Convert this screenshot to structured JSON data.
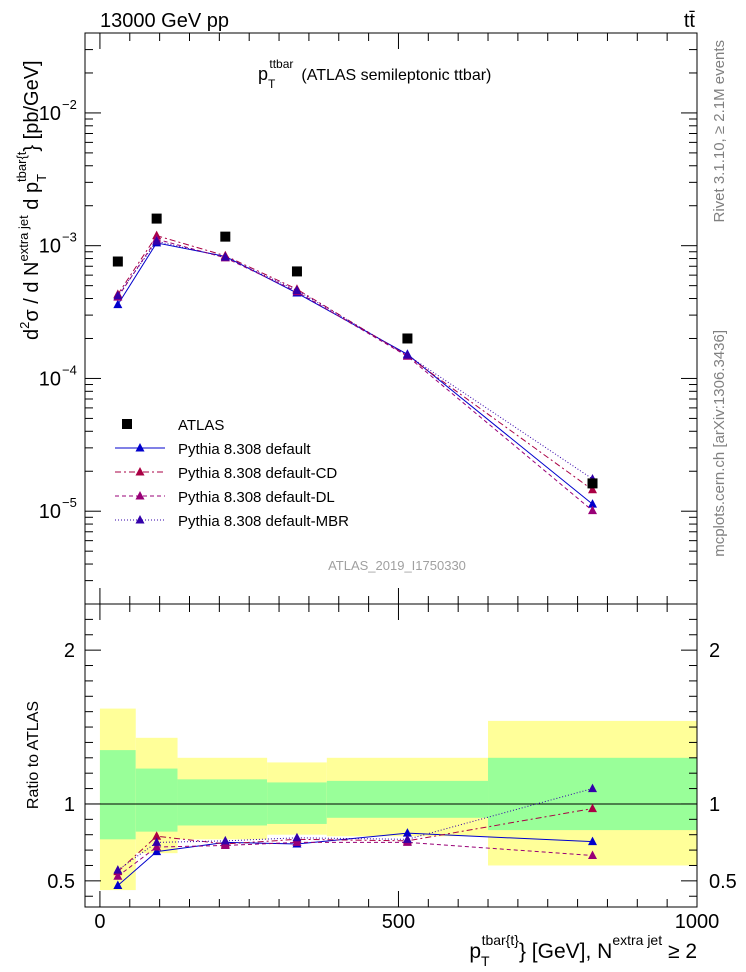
{
  "header": {
    "energy_label": "13000 GeV pp",
    "process_label": "tt̄"
  },
  "side_labels": {
    "rivet": "Rivet 3.1.10, ≥ 2.1M events",
    "mcplots": "mcplots.cern.ch [arXiv:1306.3436]"
  },
  "chart_data": [
    {
      "type": "scatter",
      "title": "p_T^ttbar (ATLAS semileptonic ttbar)",
      "title_main": "p",
      "title_sub": "T",
      "title_sup": "ttbar",
      "title_rest": "(ATLAS semileptonic ttbar)",
      "watermark": "ATLAS_2019_I1750330",
      "ylabel": "d²σ / d N^{extra jet} d p_T^{tbar{t}} [pb/GeV]",
      "y_scale": "log",
      "xlim": [
        -25,
        1000
      ],
      "ylim": [
        2e-06,
        0.04
      ],
      "y_ticks": [
        {
          "value": 1e-05,
          "mant": "10",
          "exp": "−5"
        },
        {
          "value": 0.0001,
          "mant": "10",
          "exp": "−4"
        },
        {
          "value": 0.001,
          "mant": "10",
          "exp": "−3"
        },
        {
          "value": 0.01,
          "mant": "10",
          "exp": "−2"
        }
      ],
      "legend_position": "lower-left",
      "data": {
        "name": "ATLAS",
        "color": "#000000",
        "x": [
          30,
          95,
          210,
          330,
          515,
          825
        ],
        "y": [
          0.00076,
          0.0016,
          0.00117,
          0.00064,
          0.0002,
          1.62e-05
        ],
        "x_bins": [
          [
            0,
            60
          ],
          [
            60,
            130
          ],
          [
            130,
            280
          ],
          [
            280,
            380
          ],
          [
            380,
            650
          ],
          [
            650,
            1000
          ]
        ]
      },
      "series": [
        {
          "name": "Pythia 8.308 default",
          "color": "#0000cc",
          "dash": "none",
          "x": [
            30,
            95,
            210,
            330,
            515,
            825
          ],
          "y": [
            0.00036,
            0.00105,
            0.00083,
            0.00044,
            0.000152,
            1.13e-05
          ]
        },
        {
          "name": "Pythia 8.308 default-CD",
          "color": "#aa0044",
          "dash": "6,3,2,3",
          "x": [
            30,
            95,
            210,
            330,
            515,
            825
          ],
          "y": [
            0.00043,
            0.00119,
            0.00084,
            0.00047,
            0.000148,
            1.45e-05
          ]
        },
        {
          "name": "Pythia 8.308 default-DL",
          "color": "#990077",
          "dash": "4,3",
          "x": [
            30,
            95,
            210,
            330,
            515,
            825
          ],
          "y": [
            0.00041,
            0.00112,
            0.00081,
            0.00045,
            0.000147,
            1.01e-05
          ]
        },
        {
          "name": "Pythia 8.308 default-MBR",
          "color": "#3300aa",
          "dash": "1,2",
          "x": [
            30,
            95,
            210,
            330,
            515,
            825
          ],
          "y": [
            0.00042,
            0.00108,
            0.00082,
            0.00046,
            0.00015,
            1.75e-05
          ]
        }
      ]
    },
    {
      "type": "scatter",
      "ylabel": "Ratio to ATLAS",
      "xlabel": "p_T^{tbar{t}} [GeV], N^{extra jet} ≥ 2",
      "xlabel_main": "p",
      "xlabel_sub": "T",
      "xlabel_sup": "tbar{t}",
      "xlabel_mid": "} [GeV], N",
      "xlabel_sup2": "extra jet",
      "xlabel_end": " ≥ 2",
      "xlim": [
        -25,
        1000
      ],
      "ylim": [
        0.33,
        2.3
      ],
      "x_ticks": [
        0,
        500,
        1000
      ],
      "y_ticks": [
        0.5,
        1,
        2
      ],
      "y_tick_labels": [
        "0.5",
        "1",
        "2"
      ],
      "bands": {
        "green_color": "#99ff99",
        "yellow_color": "#ffff99",
        "bins": [
          {
            "x": [
              0,
              60
            ],
            "inner": [
              0.77,
              1.35
            ],
            "outer": [
              0.44,
              1.62
            ]
          },
          {
            "x": [
              60,
              130
            ],
            "inner": [
              0.82,
              1.23
            ],
            "outer": [
              0.68,
              1.43
            ]
          },
          {
            "x": [
              130,
              280
            ],
            "inner": [
              0.86,
              1.16
            ],
            "outer": [
              0.77,
              1.3
            ]
          },
          {
            "x": [
              280,
              380
            ],
            "inner": [
              0.87,
              1.14
            ],
            "outer": [
              0.8,
              1.27
            ]
          },
          {
            "x": [
              380,
              650
            ],
            "inner": [
              0.91,
              1.15
            ],
            "outer": [
              0.79,
              1.3
            ]
          },
          {
            "x": [
              650,
              1000
            ],
            "inner": [
              0.83,
              1.3
            ],
            "outer": [
              0.6,
              1.54
            ]
          }
        ]
      },
      "series": [
        {
          "name": "Pythia 8.308 default",
          "x": [
            30,
            95,
            210,
            330,
            515,
            825
          ],
          "y": [
            0.47,
            0.69,
            0.75,
            0.74,
            0.81,
            0.755
          ]
        },
        {
          "name": "Pythia 8.308 default-CD",
          "x": [
            30,
            95,
            210,
            330,
            515,
            825
          ],
          "y": [
            0.56,
            0.79,
            0.74,
            0.77,
            0.76,
            0.97
          ]
        },
        {
          "name": "Pythia 8.308 default-DL",
          "x": [
            30,
            95,
            210,
            330,
            515,
            825
          ],
          "y": [
            0.53,
            0.72,
            0.73,
            0.75,
            0.75,
            0.665
          ]
        },
        {
          "name": "Pythia 8.308 default-MBR",
          "x": [
            30,
            95,
            210,
            330,
            515,
            825
          ],
          "y": [
            0.57,
            0.75,
            0.76,
            0.78,
            0.77,
            1.1
          ]
        }
      ]
    }
  ]
}
